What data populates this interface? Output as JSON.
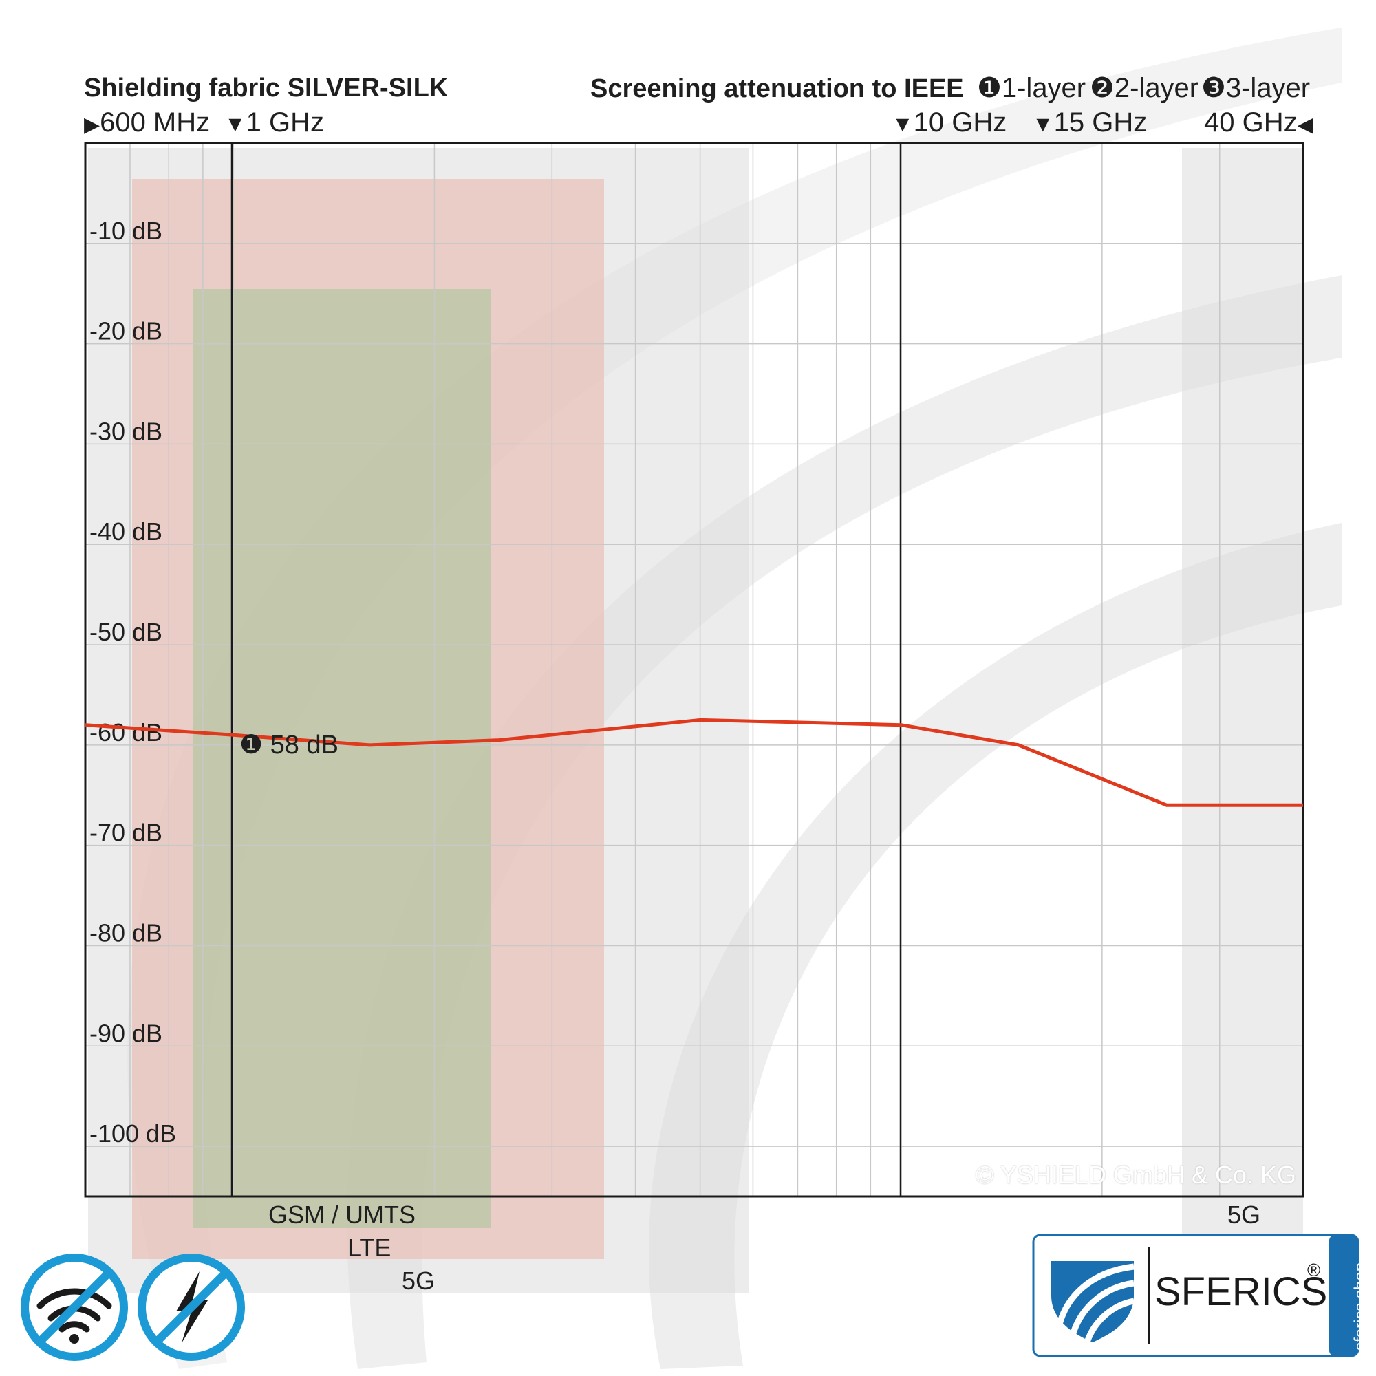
{
  "header": {
    "title": "Shielding fabric SILVER-SILK",
    "subtitle": "Screening attenuation to IEEE",
    "layers": [
      {
        "num": "❶",
        "label": "1-layer"
      },
      {
        "num": "❷",
        "label": "2-layer"
      },
      {
        "num": "❸",
        "label": "3-layer"
      }
    ]
  },
  "freq_markers": {
    "start": "600 MHz",
    "m1": "1 GHz",
    "m10": "10 GHz",
    "m15": "15 GHz",
    "end": "40 GHz"
  },
  "bands": {
    "gsm_umts": "GSM / UMTS",
    "lte": "LTE",
    "fiveg_low": "5G",
    "fiveg_high": "5G"
  },
  "annotation": {
    "num": "❶",
    "text": "58 dB"
  },
  "copyright": "© YSHIELD GmbH & Co. KG",
  "logo": {
    "name": "SFERICS",
    "registered": "®",
    "side": "sferics.shop"
  },
  "icons": [
    "no-wifi-icon",
    "no-lightning-icon",
    "shield-icon"
  ],
  "colors": {
    "line": "#e03a1e",
    "logo_blue": "#1a6fb0",
    "badge_blue": "#1b9ad6"
  },
  "chart_data": {
    "type": "line",
    "title": "Shielding fabric SILVER-SILK",
    "subtitle": "Screening attenuation to IEEE",
    "x_scale": "log",
    "xlim": [
      0.6,
      40
    ],
    "ylim": [
      -105,
      0
    ],
    "y_ticks": [
      -10,
      -20,
      -30,
      -40,
      -50,
      -60,
      -70,
      -80,
      -90,
      -100
    ],
    "y_tick_labels": [
      "-10 dB",
      "-20 dB",
      "-30 dB",
      "-40 dB",
      "-50 dB",
      "-60 dB",
      "-70 dB",
      "-80 dB",
      "-90 dB",
      "-100 dB"
    ],
    "grid": true,
    "series": [
      {
        "name": "1-layer",
        "x": [
          0.6,
          1,
          1.6,
          2.5,
          5,
          10,
          15,
          25,
          40
        ],
        "y": [
          -58,
          -59,
          -60,
          -59.5,
          -57.5,
          -58,
          -60,
          -66,
          -66
        ]
      }
    ]
  }
}
